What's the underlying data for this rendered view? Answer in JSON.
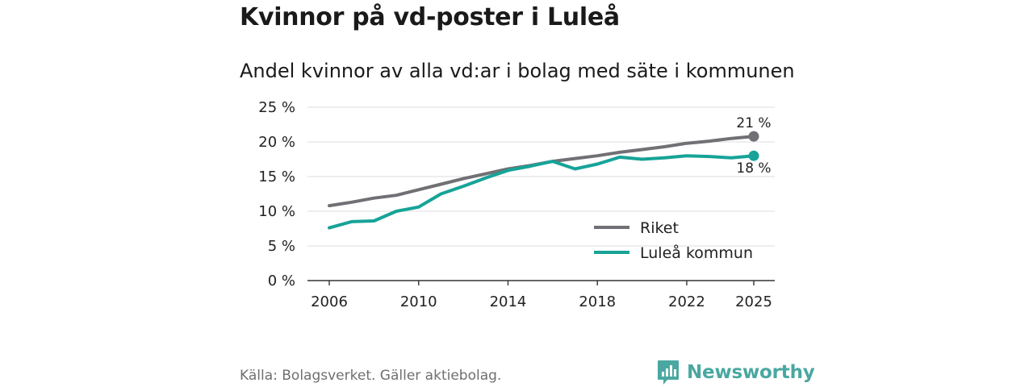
{
  "title": "Kvinnor på vd-poster i Luleå",
  "subtitle": "Andel kvinnor av alla vd:ar i bolag med säte i kommunen",
  "source": "Källa: Bolagsverket. Gäller aktiebolag.",
  "brand": "Newsworthy",
  "chart_data": {
    "type": "line",
    "title": "Kvinnor på vd-poster i Luleå",
    "subtitle": "Andel kvinnor av alla vd:ar i bolag med säte i kommunen",
    "xlabel": "",
    "ylabel": "",
    "x": [
      2006,
      2007,
      2008,
      2009,
      2010,
      2011,
      2012,
      2013,
      2014,
      2015,
      2016,
      2017,
      2018,
      2019,
      2020,
      2021,
      2022,
      2023,
      2024,
      2025
    ],
    "xlim": [
      2006,
      2025
    ],
    "xticks": [
      2006,
      2010,
      2014,
      2018,
      2022,
      2025
    ],
    "xtick_labels": [
      "2006",
      "2010",
      "2014",
      "2018",
      "2022",
      "2025"
    ],
    "ylim": [
      0,
      25
    ],
    "yticks": [
      0,
      5,
      10,
      15,
      20,
      25
    ],
    "ytick_labels": [
      "0 %",
      "5 %",
      "10 %",
      "15 %",
      "20 %",
      "25 %"
    ],
    "grid": true,
    "legend_position": "bottom-right",
    "series": [
      {
        "name": "Riket",
        "color": "#707075",
        "values": [
          10.8,
          11.3,
          11.9,
          12.3,
          13.1,
          13.9,
          14.7,
          15.4,
          16.1,
          16.6,
          17.2,
          17.6,
          18.0,
          18.5,
          18.9,
          19.3,
          19.8,
          20.1,
          20.5,
          20.8
        ],
        "end_label": "21 %"
      },
      {
        "name": "Luleå kommun",
        "color": "#17a398",
        "values": [
          7.6,
          8.5,
          8.6,
          10.0,
          10.6,
          12.5,
          13.6,
          14.8,
          15.9,
          16.5,
          17.2,
          16.1,
          16.8,
          17.8,
          17.5,
          17.7,
          18.0,
          17.9,
          17.7,
          18.0
        ],
        "end_label": "18 %"
      }
    ]
  }
}
